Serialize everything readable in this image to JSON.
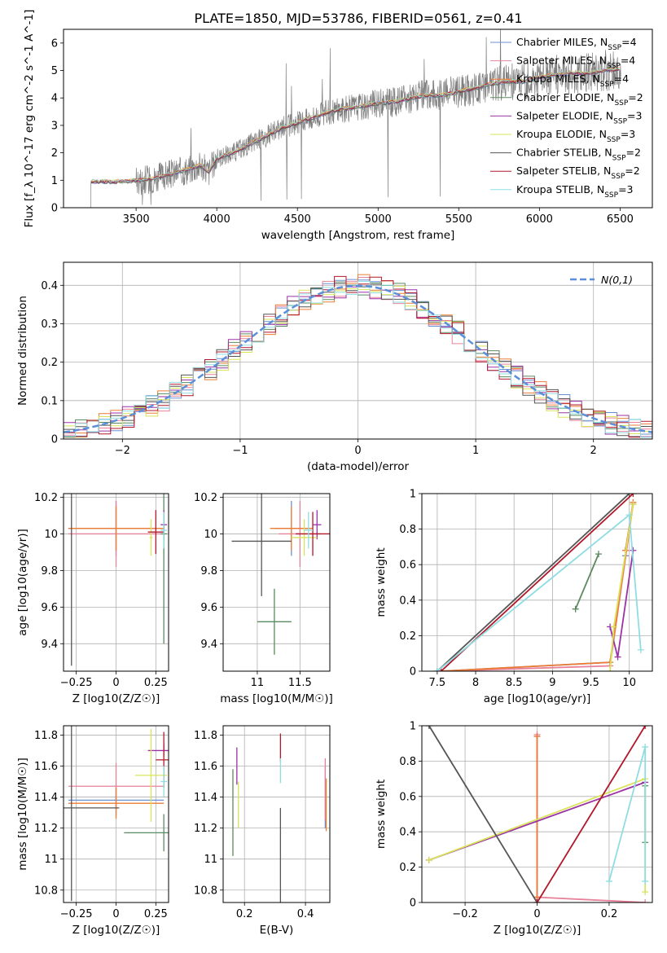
{
  "figure": {
    "title": "PLATE=1850, MJD=53786, FIBERID=0561, z=0.41"
  },
  "colors": {
    "Chabrier MILES": "#6b8fd6",
    "Salpeter MILES": "#e7829a",
    "Kroupa MILES": "#ee7d33",
    "Chabrier ELODIE": "#5a8a60",
    "Salpeter ELODIE": "#9b32a6",
    "Kroupa ELODIE": "#d9e35a",
    "Chabrier STELIB": "#555555",
    "Salpeter STELIB": "#b2182b",
    "Kroupa STELIB": "#8fdde2",
    "gauss": "#5b8fd9",
    "spectrum": "#7f7f7f"
  },
  "chart_data": [
    {
      "type": "line",
      "id": "spectrum",
      "title": "PLATE=1850, MJD=53786, FIBERID=0561, z=0.41",
      "xlabel": "wavelength [Angstrom, rest frame]",
      "ylabel": "Flux [f_λ 10^-17 erg cm^-2 s^-1 A^-1]",
      "xlim": [
        3050,
        6700
      ],
      "ylim": [
        0,
        6.5
      ],
      "xticks": [
        3500,
        4000,
        4500,
        5000,
        5500,
        6000,
        6500
      ],
      "yticks": [
        0,
        1,
        2,
        3,
        4,
        5,
        6
      ],
      "grid": false,
      "legend_position": "upper-right",
      "legend": [
        "Chabrier MILES, N_SSP=4",
        "Salpeter MILES, N_SSP=4",
        "Kroupa MILES, N_SSP=4",
        "Chabrier ELODIE, N_SSP=2",
        "Salpeter ELODIE, N_SSP=3",
        "Kroupa ELODIE, N_SSP=3",
        "Chabrier STELIB, N_SSP=2",
        "Salpeter STELIB, N_SSP=2",
        "Kroupa STELIB, N_SSP=3"
      ],
      "continuum": {
        "x": [
          3220,
          3300,
          3400,
          3500,
          3600,
          3700,
          3800,
          3900,
          3950,
          4000,
          4100,
          4200,
          4300,
          4400,
          4500,
          4600,
          4700,
          4800,
          4900,
          5000,
          5100,
          5200,
          5300,
          5400,
          5500,
          5600,
          5700,
          5800,
          5900,
          6000,
          6100,
          6200,
          6300,
          6400,
          6500
        ],
        "y": [
          0.95,
          0.95,
          0.95,
          1.0,
          1.05,
          1.2,
          1.35,
          1.55,
          1.3,
          1.8,
          2.0,
          2.3,
          2.6,
          2.9,
          3.1,
          3.3,
          3.5,
          3.6,
          3.7,
          3.8,
          3.85,
          4.0,
          4.1,
          4.1,
          4.25,
          4.35,
          4.5,
          4.6,
          4.6,
          4.75,
          4.85,
          4.9,
          4.9,
          5.0,
          5.05
        ]
      }
    },
    {
      "type": "histogram",
      "id": "residuals",
      "xlabel": "(data-model)/error",
      "ylabel": "Normed distribution",
      "xlim": [
        -2.5,
        2.5
      ],
      "ylim": [
        0,
        0.46
      ],
      "xticks": [
        -2,
        -1,
        0,
        1,
        2
      ],
      "yticks": [
        0.0,
        0.1,
        0.2,
        0.3,
        0.4
      ],
      "grid": true,
      "legend_position": "upper-right",
      "legend": [
        "N(0,1)"
      ],
      "gaussian": {
        "mean": 0,
        "sigma": 1
      }
    },
    {
      "type": "scatter",
      "id": "age_vs_Z",
      "xlabel": "Z [log10(Z/Z☉)]",
      "ylabel": "age [log10(age/yr)]",
      "xlim": [
        -0.33,
        0.33
      ],
      "ylim": [
        9.25,
        10.22
      ],
      "xticks": [
        -0.25,
        0.0,
        0.25
      ],
      "yticks": [
        9.4,
        9.6,
        9.8,
        10.0,
        10.2
      ],
      "grid": true,
      "points": [
        {
          "model": "Chabrier MILES",
          "x": 0.0,
          "y": 10.03,
          "xerr": 0.3,
          "yerr": 0.15
        },
        {
          "model": "Salpeter MILES",
          "x": 0.0,
          "y": 10.0,
          "xerr": 0.3,
          "yerr": 0.18
        },
        {
          "model": "Kroupa MILES",
          "x": 0.0,
          "y": 10.03,
          "xerr": 0.3,
          "yerr": 0.12
        },
        {
          "model": "Chabrier ELODIE",
          "x": 0.3,
          "y": 10.0,
          "xerr": 0.02,
          "yerr": 0.6
        },
        {
          "model": "Salpeter ELODIE",
          "x": 0.3,
          "y": 10.05,
          "xerr": 0.02,
          "yerr": 0.08
        },
        {
          "model": "Kroupa ELODIE",
          "x": 0.22,
          "y": 9.98,
          "xerr": 0.01,
          "yerr": 0.1
        },
        {
          "model": "Chabrier STELIB",
          "x": -0.28,
          "y": 9.96,
          "xerr": 0.0,
          "yerr": 0.68
        },
        {
          "model": "Salpeter STELIB",
          "x": 0.25,
          "y": 10.01,
          "xerr": 0.05,
          "yerr": 0.12
        },
        {
          "model": "Kroupa STELIB",
          "x": 0.3,
          "y": 10.02,
          "xerr": 0.02,
          "yerr": 0.1
        }
      ]
    },
    {
      "type": "scatter",
      "id": "age_vs_mass",
      "xlabel": "mass [log10(M/M☉)]",
      "ylabel": "",
      "xlim": [
        10.6,
        11.85
      ],
      "ylim": [
        9.25,
        10.22
      ],
      "xticks": [
        11.0,
        11.5
      ],
      "yticks": [
        9.4,
        9.6,
        9.8,
        10.0,
        10.2
      ],
      "grid": true,
      "points": [
        {
          "model": "Chabrier MILES",
          "x": 11.4,
          "y": 10.03,
          "xerr": 0.2,
          "yerr": 0.15
        },
        {
          "model": "Salpeter MILES",
          "x": 11.5,
          "y": 10.0,
          "xerr": 0.25,
          "yerr": 0.18
        },
        {
          "model": "Kroupa MILES",
          "x": 11.4,
          "y": 10.03,
          "xerr": 0.25,
          "yerr": 0.12
        },
        {
          "model": "Chabrier ELODIE",
          "x": 11.2,
          "y": 9.52,
          "xerr": 0.2,
          "yerr": 0.18
        },
        {
          "model": "Salpeter ELODIE",
          "x": 11.7,
          "y": 10.05,
          "xerr": 0.05,
          "yerr": 0.08
        },
        {
          "model": "Kroupa ELODIE",
          "x": 11.55,
          "y": 9.98,
          "xerr": 0.15,
          "yerr": 0.1
        },
        {
          "model": "Chabrier STELIB",
          "x": 11.05,
          "y": 9.96,
          "xerr": 0.35,
          "yerr": 0.3
        },
        {
          "model": "Salpeter STELIB",
          "x": 11.65,
          "y": 10.0,
          "xerr": 0.2,
          "yerr": 0.12
        },
        {
          "model": "Kroupa STELIB",
          "x": 11.6,
          "y": 10.02,
          "xerr": 0.05,
          "yerr": 0.1
        }
      ]
    },
    {
      "type": "line",
      "id": "weight_vs_age",
      "xlabel": "age [log10(age/yr)]",
      "ylabel": "mass weight",
      "xlim": [
        7.3,
        10.3
      ],
      "ylim": [
        0,
        1
      ],
      "xticks": [
        7.5,
        8.0,
        8.5,
        9.0,
        9.5,
        10.0
      ],
      "yticks": [
        0.0,
        0.2,
        0.4,
        0.6,
        0.8,
        1.0
      ],
      "grid": true,
      "series": [
        {
          "model": "Chabrier MILES",
          "x": [
            7.55,
            9.75,
            10.05,
            9.95
          ],
          "y": [
            0.0,
            0.05,
            0.95,
            0.65
          ]
        },
        {
          "model": "Salpeter MILES",
          "x": [
            7.55,
            9.75,
            10.05,
            9.95
          ],
          "y": [
            0.0,
            0.03,
            0.94,
            0.68
          ]
        },
        {
          "model": "Kroupa MILES",
          "x": [
            7.55,
            9.75,
            10.05,
            9.95
          ],
          "y": [
            0.0,
            0.05,
            0.95,
            0.68
          ]
        },
        {
          "model": "Chabrier ELODIE",
          "x": [
            9.3,
            9.6
          ],
          "y": [
            0.35,
            0.66
          ]
        },
        {
          "model": "Salpeter ELODIE",
          "x": [
            9.75,
            9.85,
            10.05
          ],
          "y": [
            0.25,
            0.08,
            0.68
          ]
        },
        {
          "model": "Kroupa ELODIE",
          "x": [
            9.75,
            9.8,
            10.05
          ],
          "y": [
            0.0,
            0.25,
            0.94
          ]
        },
        {
          "model": "Chabrier STELIB",
          "x": [
            7.5,
            10.0
          ],
          "y": [
            0.0,
            1.0
          ]
        },
        {
          "model": "Salpeter STELIB",
          "x": [
            7.55,
            10.05
          ],
          "y": [
            0.0,
            1.0
          ]
        },
        {
          "model": "Kroupa STELIB",
          "x": [
            7.5,
            10.0,
            10.15
          ],
          "y": [
            0.0,
            0.88,
            0.12
          ]
        }
      ]
    },
    {
      "type": "scatter",
      "id": "mass_vs_Z",
      "xlabel": "Z [log10(Z/Z☉)]",
      "ylabel": "mass [log10(M/M☉)]",
      "xlim": [
        -0.33,
        0.33
      ],
      "ylim": [
        10.72,
        11.86
      ],
      "xticks": [
        -0.25,
        0.0,
        0.25
      ],
      "yticks": [
        10.8,
        11.0,
        11.2,
        11.4,
        11.6,
        11.8
      ],
      "grid": true,
      "points": [
        {
          "model": "Chabrier MILES",
          "x": 0.0,
          "y": 11.38,
          "xerr": 0.3,
          "yerr": 0.1
        },
        {
          "model": "Salpeter MILES",
          "x": 0.0,
          "y": 11.47,
          "xerr": 0.3,
          "yerr": 0.15
        },
        {
          "model": "Kroupa MILES",
          "x": 0.0,
          "y": 11.36,
          "xerr": 0.3,
          "yerr": 0.1
        },
        {
          "model": "Chabrier ELODIE",
          "x": 0.3,
          "y": 11.17,
          "xerr": 0.25,
          "yerr": 0.12
        },
        {
          "model": "Salpeter ELODIE",
          "x": 0.3,
          "y": 11.7,
          "xerr": 0.1,
          "yerr": 0.04
        },
        {
          "model": "Kroupa ELODIE",
          "x": 0.22,
          "y": 11.54,
          "xerr": 0.1,
          "yerr": 0.3
        },
        {
          "model": "Chabrier STELIB",
          "x": -0.28,
          "y": 11.33,
          "xerr": 0.3,
          "yerr": 0.6
        },
        {
          "model": "Salpeter STELIB",
          "x": 0.3,
          "y": 11.64,
          "xerr": 0.05,
          "yerr": 0.18
        },
        {
          "model": "Kroupa STELIB",
          "x": 0.3,
          "y": 11.5,
          "xerr": 0.02,
          "yerr": 0.1
        }
      ]
    },
    {
      "type": "scatter",
      "id": "mass_vs_EBV",
      "xlabel": "E(B-V)",
      "ylabel": "",
      "xlim": [
        0.13,
        0.48
      ],
      "ylim": [
        10.72,
        11.86
      ],
      "xticks": [
        0.2,
        0.4
      ],
      "yticks": [
        10.8,
        11.0,
        11.2,
        11.4,
        11.6,
        11.8
      ],
      "grid": true,
      "points": [
        {
          "model": "Chabrier MILES",
          "x": 0.465,
          "y": 11.4,
          "xerr": 0.0,
          "yerr": 0.2
        },
        {
          "model": "Salpeter MILES",
          "x": 0.465,
          "y": 11.45,
          "xerr": 0.0,
          "yerr": 0.2
        },
        {
          "model": "Kroupa MILES",
          "x": 0.468,
          "y": 11.35,
          "xerr": 0.0,
          "yerr": 0.17
        },
        {
          "model": "Chabrier ELODIE",
          "x": 0.162,
          "y": 11.3,
          "xerr": 0.0,
          "yerr": 0.28
        },
        {
          "model": "Salpeter ELODIE",
          "x": 0.175,
          "y": 11.6,
          "xerr": 0.0,
          "yerr": 0.12
        },
        {
          "model": "Kroupa ELODIE",
          "x": 0.18,
          "y": 11.35,
          "xerr": 0.0,
          "yerr": 0.15
        },
        {
          "model": "Chabrier STELIB",
          "x": 0.318,
          "y": 11.0,
          "xerr": 0.0,
          "yerr": 0.33
        },
        {
          "model": "Salpeter STELIB",
          "x": 0.318,
          "y": 11.72,
          "xerr": 0.0,
          "yerr": 0.09
        },
        {
          "model": "Kroupa STELIB",
          "x": 0.318,
          "y": 11.57,
          "xerr": 0.0,
          "yerr": 0.08
        }
      ]
    },
    {
      "type": "line",
      "id": "weight_vs_Z",
      "xlabel": "Z [log10(Z/Z☉)]",
      "ylabel": "mass weight",
      "xlim": [
        -0.32,
        0.32
      ],
      "ylim": [
        0,
        1
      ],
      "xticks": [
        -0.2,
        0.0,
        0.2
      ],
      "yticks": [
        0.0,
        0.2,
        0.4,
        0.6,
        0.8,
        1.0
      ],
      "grid": true,
      "series": [
        {
          "model": "Chabrier MILES",
          "x": [
            0.0,
            0.0
          ],
          "y": [
            0.03,
            0.94
          ]
        },
        {
          "model": "Salpeter MILES",
          "x": [
            0.0,
            0.0,
            0.3
          ],
          "y": [
            0.95,
            0.03,
            0.0
          ]
        },
        {
          "model": "Kroupa MILES",
          "x": [
            0.0,
            0.0
          ],
          "y": [
            0.94,
            0.03
          ]
        },
        {
          "model": "Chabrier ELODIE",
          "x": [
            0.3,
            0.3
          ],
          "y": [
            0.66,
            0.34
          ]
        },
        {
          "model": "Salpeter ELODIE",
          "x": [
            -0.3,
            0.3
          ],
          "y": [
            0.24,
            0.68
          ]
        },
        {
          "model": "Kroupa ELODIE",
          "x": [
            -0.3,
            0.3,
            0.3
          ],
          "y": [
            0.24,
            0.7,
            0.06
          ]
        },
        {
          "model": "Chabrier STELIB",
          "x": [
            -0.3,
            0.0
          ],
          "y": [
            1.0,
            0.0
          ]
        },
        {
          "model": "Salpeter STELIB",
          "x": [
            0.0,
            0.3
          ],
          "y": [
            0.0,
            1.0
          ]
        },
        {
          "model": "Kroupa STELIB",
          "x": [
            0.2,
            0.3,
            0.3
          ],
          "y": [
            0.12,
            0.88,
            0.12
          ]
        }
      ]
    }
  ]
}
